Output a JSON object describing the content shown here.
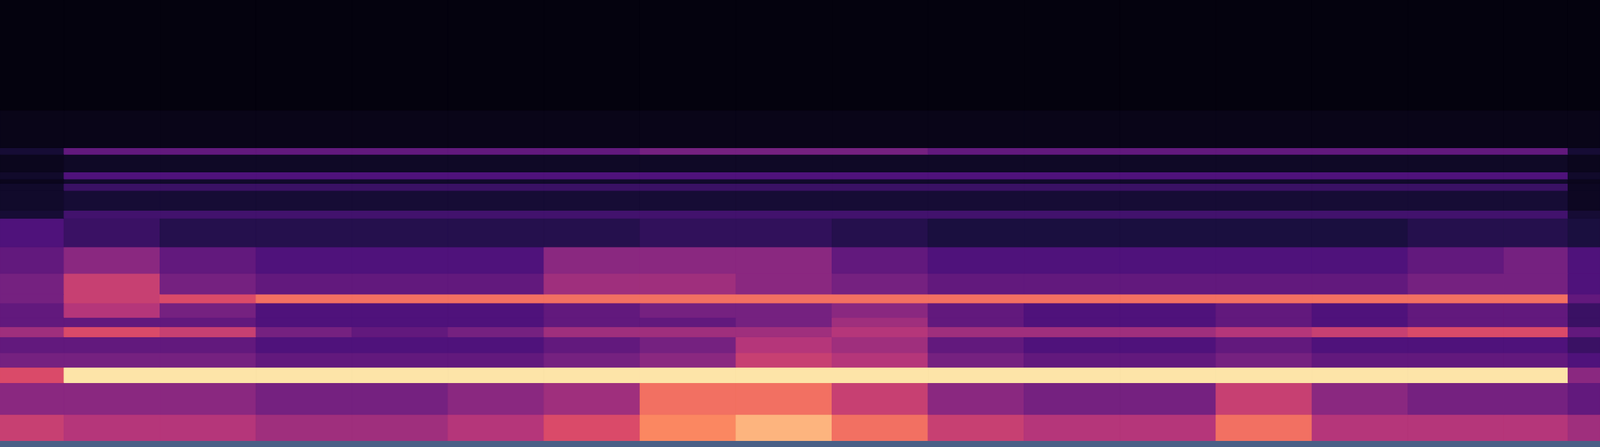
{
  "chart_data": {
    "type": "heatmap",
    "tick_labels": false,
    "xlim": [
      0,
      100
    ],
    "ylim": [
      0,
      100
    ],
    "color_range": [
      0,
      1
    ],
    "x_bins": [
      0,
      4,
      10,
      16,
      22,
      28,
      34,
      40,
      46,
      52,
      58,
      64,
      70,
      76,
      82,
      88,
      94,
      98,
      100
    ],
    "y_bins": [
      0,
      6,
      13.2,
      16.7,
      20,
      23.6,
      25.9,
      28,
      31.3,
      33.3,
      38,
      44,
      50.5,
      52.3,
      56.8,
      58.4,
      59.4,
      61,
      65,
      66.5,
      75,
      100
    ],
    "cells": [
      [
        0.55,
        0.5,
        0.5,
        0.45,
        0.45,
        0.5,
        0.6,
        0.75,
        0.85,
        0.7,
        0.55,
        0.5,
        0.5,
        0.7,
        0.5,
        0.5,
        0.5,
        0.45
      ],
      [
        0.4,
        0.4,
        0.4,
        0.35,
        0.35,
        0.4,
        0.45,
        0.7,
        0.7,
        0.55,
        0.4,
        0.35,
        0.35,
        0.55,
        0.4,
        0.35,
        0.35,
        0.3
      ],
      [
        0.6,
        0.95,
        0.95,
        0.95,
        0.95,
        0.95,
        0.95,
        0.95,
        0.95,
        0.95,
        0.95,
        0.95,
        0.95,
        0.95,
        0.95,
        0.95,
        0.95,
        0.4
      ],
      [
        0.35,
        0.35,
        0.35,
        0.3,
        0.3,
        0.3,
        0.35,
        0.4,
        0.55,
        0.5,
        0.35,
        0.3,
        0.3,
        0.35,
        0.3,
        0.3,
        0.3,
        0.25
      ],
      [
        0.3,
        0.3,
        0.3,
        0.25,
        0.25,
        0.25,
        0.3,
        0.35,
        0.5,
        0.45,
        0.3,
        0.25,
        0.25,
        0.3,
        0.25,
        0.25,
        0.25,
        0.2
      ],
      [
        0.45,
        0.6,
        0.55,
        0.35,
        0.3,
        0.35,
        0.45,
        0.45,
        0.45,
        0.5,
        0.45,
        0.45,
        0.45,
        0.5,
        0.55,
        0.6,
        0.6,
        0.3
      ],
      [
        0.3,
        0.3,
        0.3,
        0.25,
        0.25,
        0.25,
        0.3,
        0.3,
        0.35,
        0.45,
        0.3,
        0.25,
        0.25,
        0.3,
        0.25,
        0.3,
        0.3,
        0.2
      ],
      [
        0.3,
        0.5,
        0.35,
        0.25,
        0.25,
        0.25,
        0.3,
        0.35,
        0.35,
        0.4,
        0.3,
        0.25,
        0.25,
        0.3,
        0.25,
        0.3,
        0.3,
        0.2
      ],
      [
        0.35,
        0.55,
        0.6,
        0.7,
        0.7,
        0.7,
        0.7,
        0.7,
        0.7,
        0.7,
        0.7,
        0.7,
        0.7,
        0.7,
        0.7,
        0.7,
        0.7,
        0.3
      ],
      [
        0.35,
        0.55,
        0.35,
        0.3,
        0.3,
        0.3,
        0.45,
        0.45,
        0.4,
        0.35,
        0.3,
        0.3,
        0.3,
        0.3,
        0.3,
        0.35,
        0.35,
        0.25
      ],
      [
        0.3,
        0.4,
        0.3,
        0.25,
        0.25,
        0.25,
        0.4,
        0.4,
        0.4,
        0.3,
        0.25,
        0.25,
        0.25,
        0.25,
        0.25,
        0.3,
        0.35,
        0.25
      ],
      [
        0.25,
        0.2,
        0.15,
        0.15,
        0.15,
        0.15,
        0.15,
        0.18,
        0.18,
        0.15,
        0.12,
        0.12,
        0.12,
        0.12,
        0.12,
        0.15,
        0.15,
        0.12
      ],
      [
        0.1,
        0.22,
        0.22,
        0.22,
        0.22,
        0.22,
        0.22,
        0.22,
        0.22,
        0.22,
        0.22,
        0.22,
        0.22,
        0.22,
        0.22,
        0.22,
        0.22,
        0.1
      ],
      [
        0.08,
        0.1,
        0.1,
        0.1,
        0.1,
        0.1,
        0.1,
        0.1,
        0.1,
        0.1,
        0.1,
        0.1,
        0.1,
        0.1,
        0.1,
        0.1,
        0.1,
        0.06
      ],
      [
        0.08,
        0.2,
        0.2,
        0.2,
        0.2,
        0.2,
        0.2,
        0.2,
        0.2,
        0.2,
        0.2,
        0.2,
        0.2,
        0.2,
        0.2,
        0.2,
        0.2,
        0.06
      ],
      [
        0.05,
        0.08,
        0.08,
        0.08,
        0.08,
        0.08,
        0.08,
        0.08,
        0.08,
        0.08,
        0.08,
        0.08,
        0.08,
        0.08,
        0.08,
        0.08,
        0.08,
        0.05
      ],
      [
        0.08,
        0.25,
        0.25,
        0.25,
        0.25,
        0.25,
        0.25,
        0.25,
        0.25,
        0.25,
        0.25,
        0.25,
        0.25,
        0.25,
        0.25,
        0.25,
        0.25,
        0.08
      ],
      [
        0.05,
        0.07,
        0.07,
        0.07,
        0.07,
        0.07,
        0.07,
        0.07,
        0.07,
        0.07,
        0.07,
        0.07,
        0.07,
        0.07,
        0.07,
        0.07,
        0.07,
        0.05
      ],
      [
        0.1,
        0.3,
        0.3,
        0.3,
        0.3,
        0.3,
        0.3,
        0.35,
        0.35,
        0.35,
        0.3,
        0.3,
        0.3,
        0.3,
        0.3,
        0.3,
        0.3,
        0.1
      ],
      [
        0.04,
        0.04,
        0.04,
        0.04,
        0.04,
        0.04,
        0.04,
        0.04,
        0.04,
        0.04,
        0.04,
        0.04,
        0.04,
        0.04,
        0.04,
        0.04,
        0.04,
        0.04
      ],
      [
        0.02,
        0.02,
        0.02,
        0.02,
        0.02,
        0.02,
        0.02,
        0.02,
        0.02,
        0.02,
        0.02,
        0.02,
        0.02,
        0.02,
        0.02,
        0.02,
        0.02,
        0.02
      ]
    ]
  }
}
